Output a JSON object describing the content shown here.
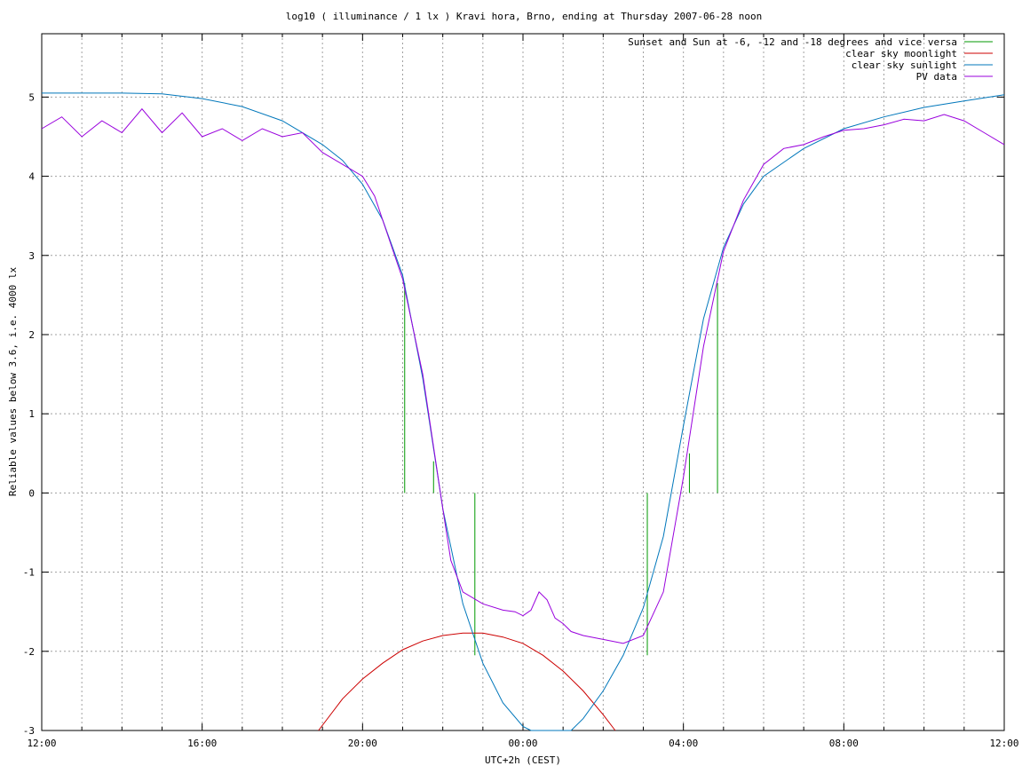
{
  "chart_data": {
    "type": "line",
    "title": "log10 ( illuminance / 1 lx ) Kravi hora, Brno, ending at Thursday 2007-06-28 noon",
    "xlabel": "UTC+2h (CEST)",
    "ylabel": "Reliable values below 3.6, i.e. 4000 lx",
    "x_unit": "hours since 12:00 (previous day)",
    "xlim": [
      0,
      24
    ],
    "ylim": [
      -3,
      5.8
    ],
    "x_tick_labels": [
      "12:00",
      "16:00",
      "20:00",
      "00:00",
      "04:00",
      "08:00",
      "12:00"
    ],
    "x_tick_values": [
      0,
      4,
      8,
      12,
      16,
      20,
      24
    ],
    "y_tick_labels": [
      "-3",
      "-2",
      "-1",
      "0",
      "1",
      "2",
      "3",
      "4",
      "5"
    ],
    "y_tick_values": [
      -3,
      -2,
      -1,
      0,
      1,
      2,
      3,
      4,
      5
    ],
    "grid": true,
    "legend_position": "top-right",
    "series": [
      {
        "name": "Sunset and Sun at -6, -12 and -18 degrees and vice versa",
        "color": "#009900",
        "style": "vertical-markers",
        "markers": [
          {
            "x": 9.05,
            "y_top": 2.65
          },
          {
            "x": 9.77,
            "y_top": 0.4
          },
          {
            "x": 10.8,
            "y_top": 0.0
          },
          {
            "x": 15.1,
            "y_top": 0.0
          },
          {
            "x": 16.15,
            "y_top": 0.5
          },
          {
            "x": 16.85,
            "y_top": 2.65
          }
        ]
      },
      {
        "name": "clear sky moonlight",
        "color": "#cc0000",
        "x": [
          6.9,
          7.5,
          8.0,
          8.5,
          9.0,
          9.5,
          10.0,
          10.5,
          11.0,
          11.5,
          12.0,
          12.5,
          13.0,
          13.5,
          14.0,
          14.3
        ],
        "y": [
          -3.0,
          -2.6,
          -2.35,
          -2.15,
          -1.98,
          -1.87,
          -1.8,
          -1.77,
          -1.77,
          -1.82,
          -1.9,
          -2.05,
          -2.25,
          -2.5,
          -2.8,
          -3.0
        ]
      },
      {
        "name": "clear sky sunlight",
        "color": "#0077bb",
        "x": [
          0,
          1,
          2,
          3,
          4,
          5,
          6,
          7,
          7.5,
          8,
          8.5,
          9,
          9.5,
          10,
          10.5,
          11,
          11.5,
          12,
          12.2,
          13.2,
          13.5,
          14,
          14.5,
          15,
          15.5,
          16,
          16.5,
          17,
          17.5,
          18,
          19,
          20,
          21,
          22,
          23,
          24
        ],
        "y": [
          5.05,
          5.05,
          5.05,
          5.04,
          4.98,
          4.88,
          4.7,
          4.4,
          4.2,
          3.9,
          3.45,
          2.75,
          1.45,
          -0.2,
          -1.4,
          -2.15,
          -2.65,
          -2.95,
          -3.0,
          -3.0,
          -2.85,
          -2.5,
          -2.05,
          -1.45,
          -0.55,
          0.85,
          2.2,
          3.1,
          3.65,
          4.0,
          4.35,
          4.6,
          4.75,
          4.87,
          4.95,
          5.03
        ]
      },
      {
        "name": "PV data",
        "color": "#9900dd",
        "x": [
          0,
          0.5,
          1,
          1.5,
          2,
          2.5,
          3,
          3.5,
          4,
          4.5,
          5,
          5.5,
          6,
          6.5,
          7,
          7.5,
          8,
          8.3,
          8.6,
          9,
          9.5,
          10,
          10.2,
          10.5,
          11,
          11.5,
          11.8,
          12,
          12.2,
          12.4,
          12.6,
          12.8,
          13,
          13.2,
          13.5,
          14,
          14.5,
          15,
          15.5,
          16,
          16.5,
          17,
          17.5,
          18,
          18.5,
          19,
          19.5,
          20,
          20.5,
          21,
          21.5,
          22,
          22.5,
          23,
          23.5,
          24
        ],
        "y": [
          4.6,
          4.75,
          4.5,
          4.7,
          4.55,
          4.85,
          4.55,
          4.8,
          4.5,
          4.6,
          4.45,
          4.6,
          4.5,
          4.55,
          4.3,
          4.15,
          4.0,
          3.75,
          3.3,
          2.7,
          1.5,
          -0.2,
          -0.85,
          -1.25,
          -1.4,
          -1.48,
          -1.5,
          -1.55,
          -1.48,
          -1.25,
          -1.35,
          -1.58,
          -1.65,
          -1.75,
          -1.8,
          -1.85,
          -1.9,
          -1.8,
          -1.25,
          0.2,
          1.85,
          3.05,
          3.7,
          4.15,
          4.35,
          4.4,
          4.5,
          4.58,
          4.6,
          4.65,
          4.72,
          4.7,
          4.78,
          4.7,
          4.55,
          4.4
        ]
      }
    ]
  }
}
